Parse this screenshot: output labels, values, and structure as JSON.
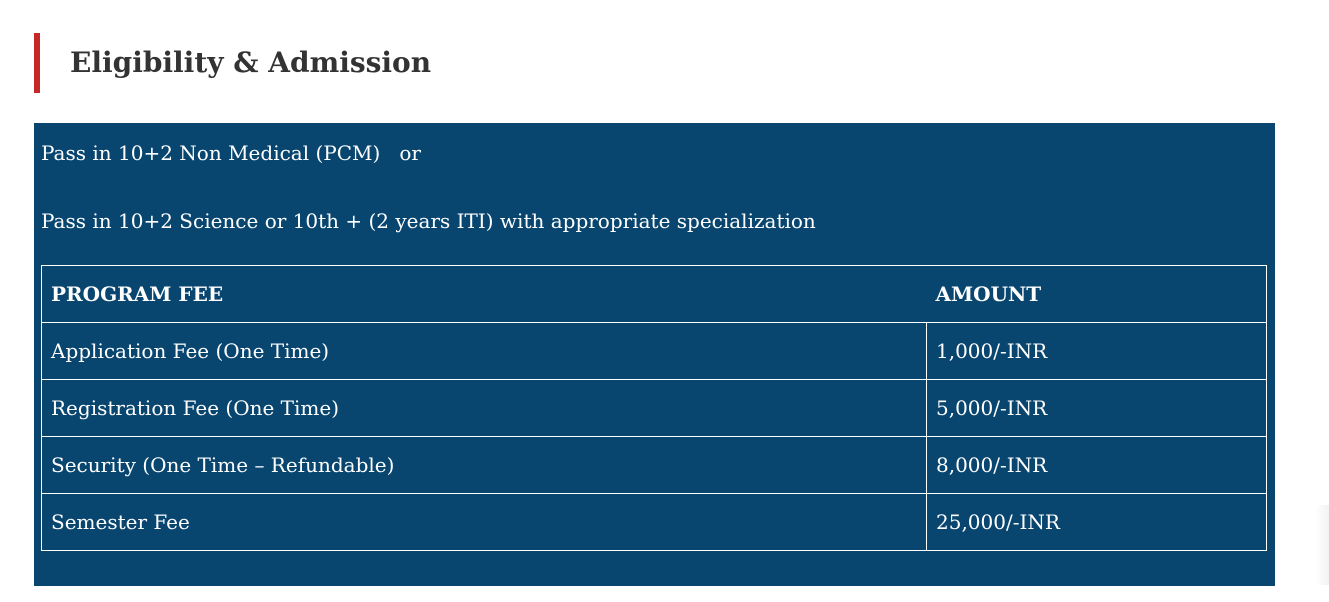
{
  "section": {
    "title": "Eligibility & Admission",
    "accent_color": "#c62828"
  },
  "panel": {
    "background_color": "#08456f",
    "eligibility_lines": [
      "Pass in 10+2 Non Medical (PCM)   or",
      "Pass in 10+2 Science or 10th + (2 years ITI) with appropriate specialization"
    ]
  },
  "fee_table": {
    "headers": [
      "PROGRAM FEE",
      "AMOUNT"
    ],
    "rows": [
      {
        "fee": "Application Fee (One Time)",
        "amount": "1,000/-INR"
      },
      {
        "fee": "Registration Fee (One Time)",
        "amount": "5,000/-INR"
      },
      {
        "fee": "Security (One Time – Refundable)",
        "amount": "8,000/-INR"
      },
      {
        "fee": "Semester Fee",
        "amount": "25,000/-INR"
      }
    ]
  }
}
